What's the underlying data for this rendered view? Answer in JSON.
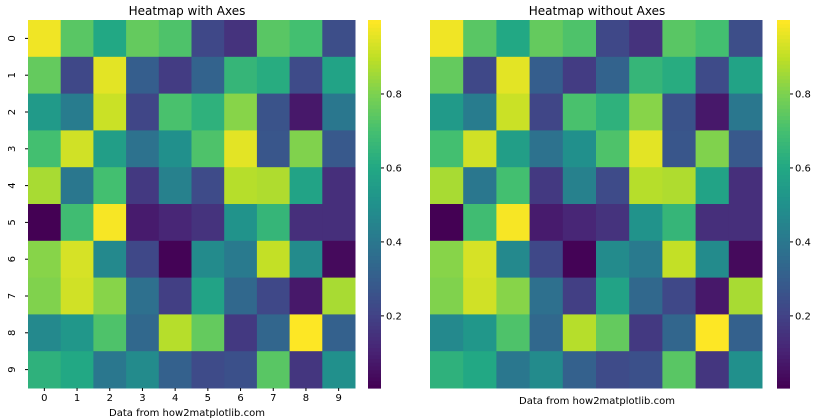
{
  "chart_data": [
    {
      "type": "heatmap",
      "title": "Heatmap with Axes",
      "footer": "Data from how2matplotlib.com",
      "show_axes": true,
      "x_ticks": [
        "0",
        "1",
        "2",
        "3",
        "4",
        "5",
        "6",
        "7",
        "8",
        "9"
      ],
      "y_ticks": [
        "0",
        "1",
        "2",
        "3",
        "4",
        "5",
        "6",
        "7",
        "8",
        "9"
      ],
      "colormap": "viridis",
      "vmin": 0.005,
      "vmax": 1.0,
      "colorbar_ticks": [
        "0.2",
        "0.4",
        "0.6",
        "0.8"
      ]
    },
    {
      "type": "heatmap",
      "title": "Heatmap without Axes",
      "footer": "Data from how2matplotlib.com",
      "show_axes": false,
      "colormap": "viridis",
      "vmin": 0.005,
      "vmax": 1.0,
      "colorbar_ticks": [
        "0.2",
        "0.4",
        "0.6",
        "0.8"
      ]
    }
  ],
  "values": [
    [
      0.98,
      0.74,
      0.6,
      0.76,
      0.72,
      0.22,
      0.15,
      0.74,
      0.7,
      0.24
    ],
    [
      0.76,
      0.22,
      0.96,
      0.3,
      0.18,
      0.32,
      0.66,
      0.62,
      0.23,
      0.58
    ],
    [
      0.54,
      0.42,
      0.92,
      0.21,
      0.71,
      0.64,
      0.82,
      0.26,
      0.07,
      0.4
    ],
    [
      0.7,
      0.93,
      0.56,
      0.38,
      0.5,
      0.72,
      0.96,
      0.27,
      0.81,
      0.28
    ],
    [
      0.87,
      0.4,
      0.7,
      0.17,
      0.44,
      0.23,
      0.89,
      0.88,
      0.58,
      0.14
    ],
    [
      0.005,
      0.69,
      0.99,
      0.08,
      0.11,
      0.15,
      0.51,
      0.66,
      0.14,
      0.14
    ],
    [
      0.82,
      0.94,
      0.47,
      0.22,
      0.01,
      0.48,
      0.41,
      0.91,
      0.48,
      0.03
    ],
    [
      0.81,
      0.93,
      0.82,
      0.37,
      0.19,
      0.58,
      0.34,
      0.22,
      0.07,
      0.87
    ],
    [
      0.47,
      0.53,
      0.72,
      0.34,
      0.89,
      0.76,
      0.17,
      0.33,
      1.0,
      0.31
    ],
    [
      0.64,
      0.6,
      0.4,
      0.48,
      0.31,
      0.23,
      0.25,
      0.74,
      0.16,
      0.5
    ]
  ]
}
